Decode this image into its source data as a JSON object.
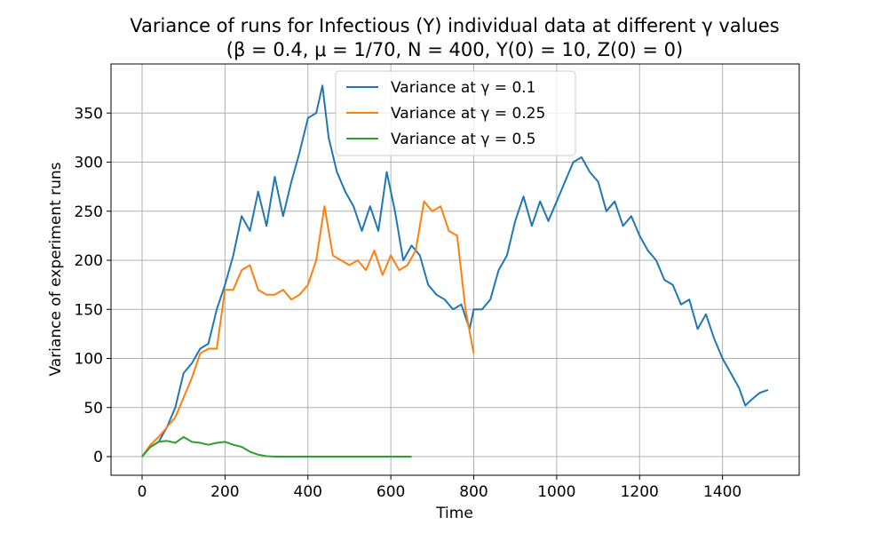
{
  "chart_data": {
    "type": "line",
    "title": "Variance of runs for Infectious (Y) individual data at different γ values",
    "subtitle": "(β = 0.4, μ = 1/70, N = 400, Y(0) = 10, Z(0) = 0)",
    "xlabel": "Time",
    "ylabel": "Variance of experiment runs",
    "xlim": [
      -75,
      1585
    ],
    "ylim": [
      -19,
      400
    ],
    "xticks": [
      0,
      200,
      400,
      600,
      800,
      1000,
      1200,
      1400
    ],
    "yticks": [
      0,
      50,
      100,
      150,
      200,
      250,
      300,
      350
    ],
    "grid": true,
    "legend_position": "top-center",
    "series": [
      {
        "name": "Variance at γ = 0.1",
        "color": "#1f77b4",
        "x": [
          0,
          20,
          40,
          60,
          80,
          100,
          120,
          140,
          160,
          180,
          200,
          220,
          240,
          260,
          280,
          300,
          320,
          340,
          360,
          380,
          400,
          420,
          435,
          450,
          470,
          490,
          510,
          530,
          550,
          570,
          590,
          610,
          630,
          650,
          670,
          690,
          710,
          730,
          750,
          770,
          790,
          800,
          820,
          840,
          860,
          880,
          900,
          920,
          940,
          960,
          980,
          1000,
          1020,
          1040,
          1060,
          1080,
          1100,
          1120,
          1140,
          1160,
          1180,
          1200,
          1220,
          1240,
          1260,
          1280,
          1300,
          1320,
          1340,
          1360,
          1380,
          1400,
          1420,
          1440,
          1455,
          1470,
          1490,
          1510
        ],
        "y": [
          0,
          10,
          15,
          30,
          50,
          85,
          95,
          110,
          115,
          150,
          175,
          205,
          245,
          230,
          270,
          235,
          285,
          245,
          280,
          310,
          345,
          350,
          378,
          325,
          290,
          270,
          255,
          230,
          255,
          230,
          290,
          250,
          200,
          215,
          205,
          175,
          165,
          160,
          150,
          155,
          130,
          150,
          150,
          160,
          190,
          205,
          240,
          265,
          235,
          260,
          240,
          260,
          280,
          300,
          305,
          290,
          280,
          250,
          260,
          235,
          245,
          225,
          210,
          200,
          180,
          175,
          155,
          160,
          130,
          145,
          120,
          100,
          85,
          70,
          52,
          58,
          65,
          68
        ]
      },
      {
        "name": "Variance at γ = 0.25",
        "color": "#ff7f0e",
        "x": [
          0,
          20,
          40,
          60,
          80,
          100,
          120,
          140,
          160,
          180,
          200,
          220,
          240,
          260,
          280,
          300,
          320,
          340,
          360,
          380,
          400,
          420,
          440,
          460,
          480,
          500,
          520,
          540,
          560,
          580,
          600,
          620,
          640,
          660,
          680,
          700,
          720,
          740,
          760,
          780,
          800
        ],
        "y": [
          0,
          12,
          20,
          30,
          40,
          60,
          80,
          105,
          110,
          110,
          170,
          170,
          190,
          195,
          170,
          165,
          165,
          170,
          160,
          165,
          175,
          200,
          255,
          205,
          200,
          195,
          200,
          190,
          210,
          185,
          205,
          190,
          195,
          210,
          260,
          250,
          255,
          230,
          225,
          150,
          105
        ]
      },
      {
        "name": "Variance at γ = 0.5",
        "color": "#2ca02c",
        "x": [
          0,
          20,
          40,
          60,
          80,
          100,
          120,
          140,
          160,
          180,
          200,
          220,
          240,
          260,
          280,
          300,
          320,
          400,
          500,
          600,
          650
        ],
        "y": [
          0,
          10,
          15,
          16,
          14,
          20,
          15,
          14,
          12,
          14,
          15,
          12,
          10,
          5,
          2,
          0.5,
          0,
          0,
          0,
          0,
          0
        ]
      }
    ]
  }
}
